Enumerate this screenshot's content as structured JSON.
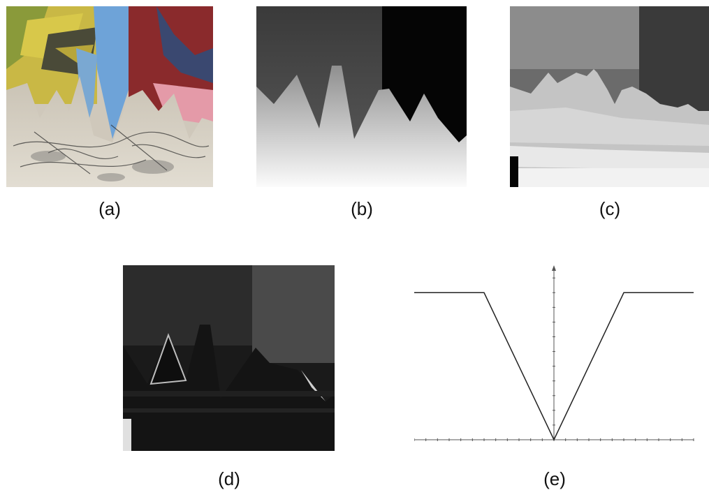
{
  "figure": {
    "panels": [
      {
        "id": "a",
        "caption": "(a)",
        "content": "color-painting-image"
      },
      {
        "id": "b",
        "caption": "(b)",
        "content": "ground-truth-disparity-map"
      },
      {
        "id": "c",
        "caption": "(c)",
        "content": "estimated-disparity-map"
      },
      {
        "id": "d",
        "caption": "(d)",
        "content": "error-map"
      },
      {
        "id": "e",
        "caption": "(e)",
        "content": "v-shaped-function-plot"
      }
    ]
  },
  "chart_data": {
    "type": "line",
    "title": "",
    "xlabel": "",
    "ylabel": "",
    "x": [
      -6,
      -3,
      0,
      3,
      6
    ],
    "y": [
      1,
      1,
      0,
      1,
      1
    ],
    "xlim": [
      -6,
      6
    ],
    "ylim": [
      0,
      1.12
    ],
    "grid": false
  },
  "colors": {
    "panel_a_sky": "#6ea3d8",
    "panel_a_red": "#8a2a2c",
    "panel_a_ground": "#cfc8bb",
    "line": "#222222"
  }
}
